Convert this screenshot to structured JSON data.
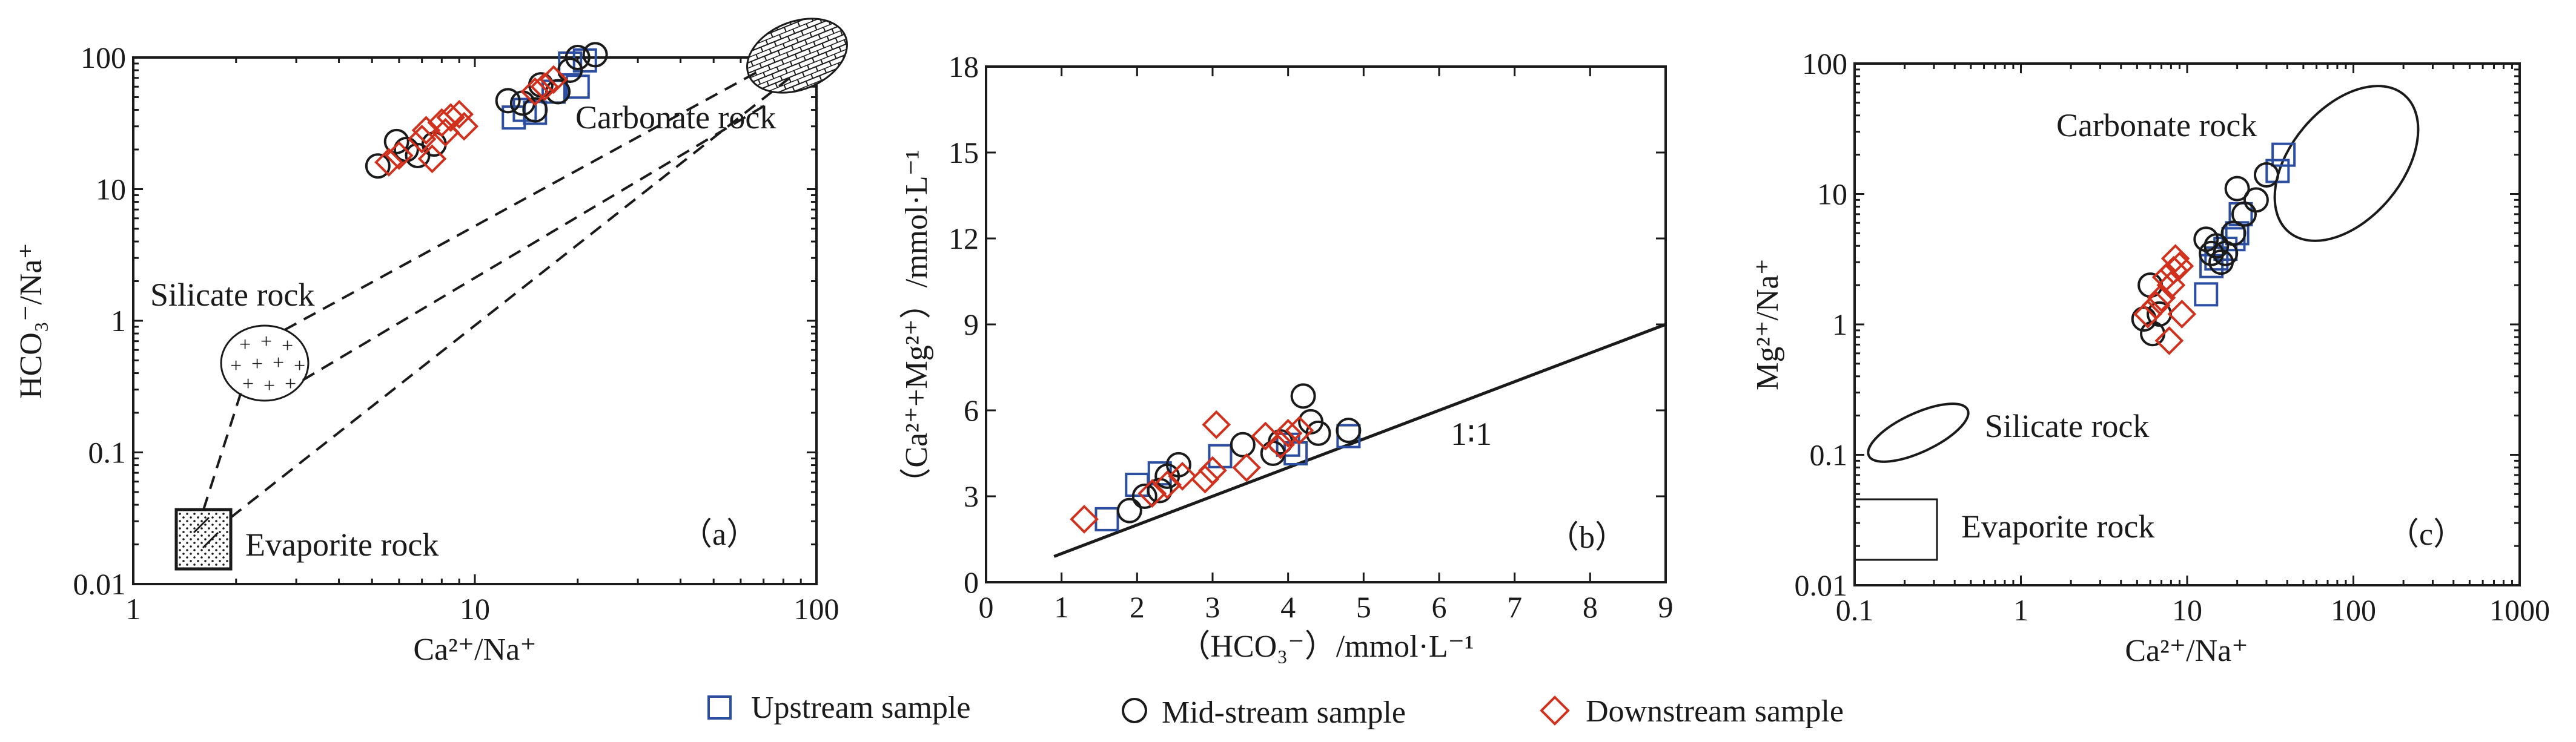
{
  "legend": {
    "upstream": "Upstream sample",
    "midstream": "Mid-stream sample",
    "downstream": "Downstream sample"
  },
  "colors": {
    "upstream": "#2b4ea0",
    "midstream": "#1a1a1a",
    "downstream": "#d0301c"
  },
  "chart_data": [
    {
      "type": "scatter",
      "panel_label": "（a）",
      "xscale": "log",
      "yscale": "log",
      "xlim": [
        1,
        100
      ],
      "ylim": [
        0.01,
        100
      ],
      "xticks": [
        "1",
        "10",
        "100"
      ],
      "yticks": [
        "0.01",
        "0.1",
        "1",
        "10",
        "100"
      ],
      "xlabel": "Ca²⁺/Na⁺",
      "ylabel": "HCO₃⁻/Na⁺",
      "regions": [
        {
          "name": "Carbonate rock",
          "x": 85,
          "y": 100
        },
        {
          "name": "Silicate rock",
          "x": 2.5,
          "y": 0.45
        },
        {
          "name": "Evaporite rock",
          "x": 1.7,
          "y": 0.021
        }
      ],
      "series": [
        {
          "name": "Upstream",
          "x": [
            13,
            14,
            15,
            17,
            19,
            20,
            21
          ],
          "y": [
            35,
            40,
            38,
            55,
            90,
            60,
            95
          ]
        },
        {
          "name": "Mid-stream",
          "x": [
            5.2,
            5.9,
            6.3,
            6.8,
            7.6,
            12.5,
            13.8,
            15,
            15.6,
            17.5,
            19,
            20,
            22.5
          ],
          "y": [
            15,
            23,
            20,
            18,
            22,
            47,
            45,
            40,
            62,
            55,
            80,
            100,
            105
          ]
        },
        {
          "name": "Downstream",
          "x": [
            5.6,
            6,
            7,
            7.2,
            7.5,
            8,
            8.2,
            8.5,
            9,
            9.3,
            15,
            16,
            17
          ],
          "y": [
            16,
            18,
            24,
            28,
            17,
            32,
            27,
            35,
            37,
            30,
            55,
            60,
            68
          ]
        }
      ]
    },
    {
      "type": "scatter",
      "panel_label": "（b）",
      "xscale": "linear",
      "yscale": "linear",
      "xlim": [
        0,
        9
      ],
      "ylim": [
        0,
        18
      ],
      "xticks": [
        "0",
        "1",
        "2",
        "3",
        "4",
        "5",
        "6",
        "7",
        "8",
        "9"
      ],
      "yticks": [
        "0",
        "3",
        "6",
        "9",
        "12",
        "15",
        "18"
      ],
      "xlabel": "（HCO₃⁻）/mmol·L⁻¹",
      "ylabel": "（Ca²⁺+Mg²⁺）/mmol·L⁻¹",
      "line": {
        "label": "1∶1",
        "x": [
          0.9,
          9
        ],
        "y": [
          0.9,
          9
        ]
      },
      "series": [
        {
          "name": "Upstream",
          "x": [
            1.6,
            2,
            2.3,
            3.1,
            4,
            4.1,
            4.8
          ],
          "y": [
            2.2,
            3.4,
            3.8,
            4.4,
            4.8,
            4.5,
            5.1
          ]
        },
        {
          "name": "Mid-stream",
          "x": [
            1.9,
            2.1,
            2.3,
            2.4,
            2.55,
            3.4,
            3.8,
            3.9,
            4.2,
            4.3,
            4.4,
            4.8
          ],
          "y": [
            2.5,
            3,
            3.2,
            3.7,
            4.1,
            4.8,
            4.5,
            4.9,
            6.5,
            5.6,
            5.2,
            5.3
          ]
        },
        {
          "name": "Downstream",
          "x": [
            1.3,
            2.2,
            2.4,
            2.6,
            2.9,
            3,
            3.05,
            3.45,
            3.7,
            3.9,
            4,
            4.15
          ],
          "y": [
            2.2,
            3.1,
            3.4,
            3.7,
            3.6,
            3.9,
            5.5,
            4,
            5.1,
            4.8,
            5.2,
            5.3
          ]
        }
      ]
    },
    {
      "type": "scatter",
      "panel_label": "（c）",
      "xscale": "log",
      "yscale": "log",
      "xlim": [
        0.1,
        1000
      ],
      "ylim": [
        0.01,
        100
      ],
      "xticks": [
        "0.1",
        "1",
        "10",
        "100",
        "1000"
      ],
      "yticks": [
        "0.01",
        "0.1",
        "1",
        "10",
        "100"
      ],
      "xlabel": "Ca²⁺/Na⁺",
      "ylabel": "Mg²⁺/Na⁺",
      "regions": [
        {
          "name": "Carbonate rock",
          "x": 90,
          "y": 14
        },
        {
          "name": "Silicate rock",
          "x": 0.22,
          "y": 0.15
        },
        {
          "name": "Evaporite rock",
          "x": 0.2,
          "y": 0.02
        }
      ],
      "series": [
        {
          "name": "Upstream",
          "x": [
            13,
            14,
            15,
            17,
            19,
            20,
            21,
            35,
            38
          ],
          "y": [
            1.7,
            2.8,
            3.2,
            3.8,
            4.5,
            5,
            7,
            15,
            20
          ]
        },
        {
          "name": "Mid-stream",
          "x": [
            5.5,
            6,
            6.2,
            6.8,
            13,
            14,
            15,
            16,
            17,
            19,
            20,
            22,
            26,
            30
          ],
          "y": [
            1.1,
            2,
            0.85,
            1.2,
            4.5,
            3.5,
            4,
            3,
            3.5,
            5,
            11,
            7,
            9,
            14
          ]
        },
        {
          "name": "Downstream",
          "x": [
            5.8,
            6.5,
            7,
            7.5,
            7.8,
            8,
            8.3,
            8.5,
            9,
            9.3
          ],
          "y": [
            1.2,
            1.4,
            1.6,
            2.3,
            0.75,
            2,
            2.6,
            3.2,
            2.8,
            1.2
          ]
        }
      ]
    }
  ]
}
